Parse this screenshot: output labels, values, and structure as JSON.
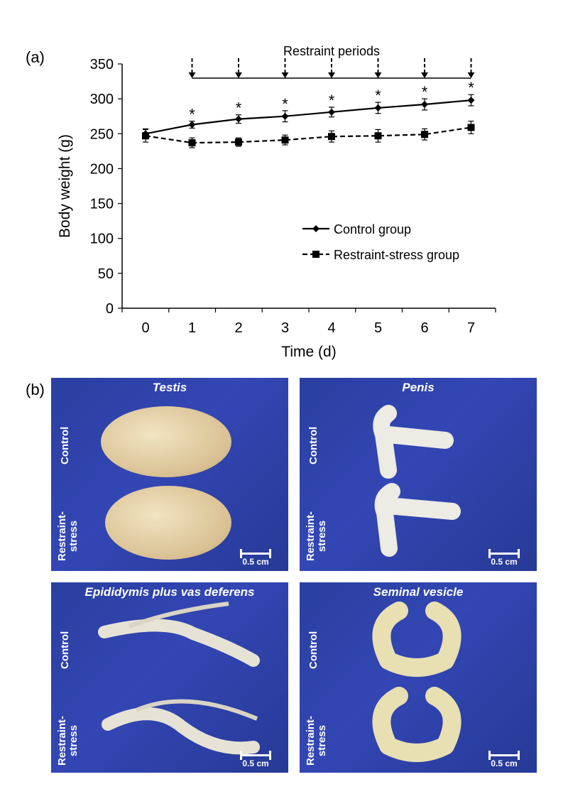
{
  "panel_a_label": "(a)",
  "panel_b_label": "(b)",
  "chart_data": {
    "type": "line",
    "x": [
      0,
      1,
      2,
      3,
      4,
      5,
      6,
      7
    ],
    "xlabel": "Time (d)",
    "ylabel": "Body weight (g)",
    "ylim": [
      0,
      350
    ],
    "yticks": [
      0,
      50,
      100,
      150,
      200,
      250,
      300,
      350
    ],
    "xticks": [
      0,
      1,
      2,
      3,
      4,
      5,
      6,
      7
    ],
    "series": [
      {
        "name": "Control group",
        "values": [
          250,
          263,
          271,
          275,
          281,
          287,
          292,
          298
        ],
        "errors": [
          7,
          5,
          6,
          8,
          7,
          8,
          8,
          8
        ],
        "marker": "diamond",
        "line": "solid"
      },
      {
        "name": "Restraint-stress group",
        "values": [
          247,
          237,
          238,
          241,
          246,
          247,
          249,
          259
        ],
        "errors": [
          9,
          7,
          6,
          7,
          8,
          9,
          8,
          9
        ],
        "marker": "square",
        "line": "dashed"
      }
    ],
    "significance_marker": "*",
    "significant_days": [
      1,
      2,
      3,
      4,
      5,
      6,
      7
    ],
    "annotation": "Restraint periods",
    "restraint_days": [
      1,
      2,
      3,
      4,
      5,
      6,
      7
    ],
    "grid": false,
    "legend_position": "center-right"
  },
  "photos": [
    {
      "title": "Testis",
      "top_label": "Control",
      "bottom_label": "Restraint-\nstress",
      "scale": "0.5 cm"
    },
    {
      "title": "Penis",
      "top_label": "Control",
      "bottom_label": "Restraint-\nstress",
      "scale": "0.5 cm"
    },
    {
      "title": "Epididymis plus vas deferens",
      "top_label": "Control",
      "bottom_label": "Restraint-\nstress",
      "scale": "0.5 cm"
    },
    {
      "title": "Seminal vesicle",
      "top_label": "Control",
      "bottom_label": "Restraint-\nstress",
      "scale": "0.5 cm"
    }
  ]
}
